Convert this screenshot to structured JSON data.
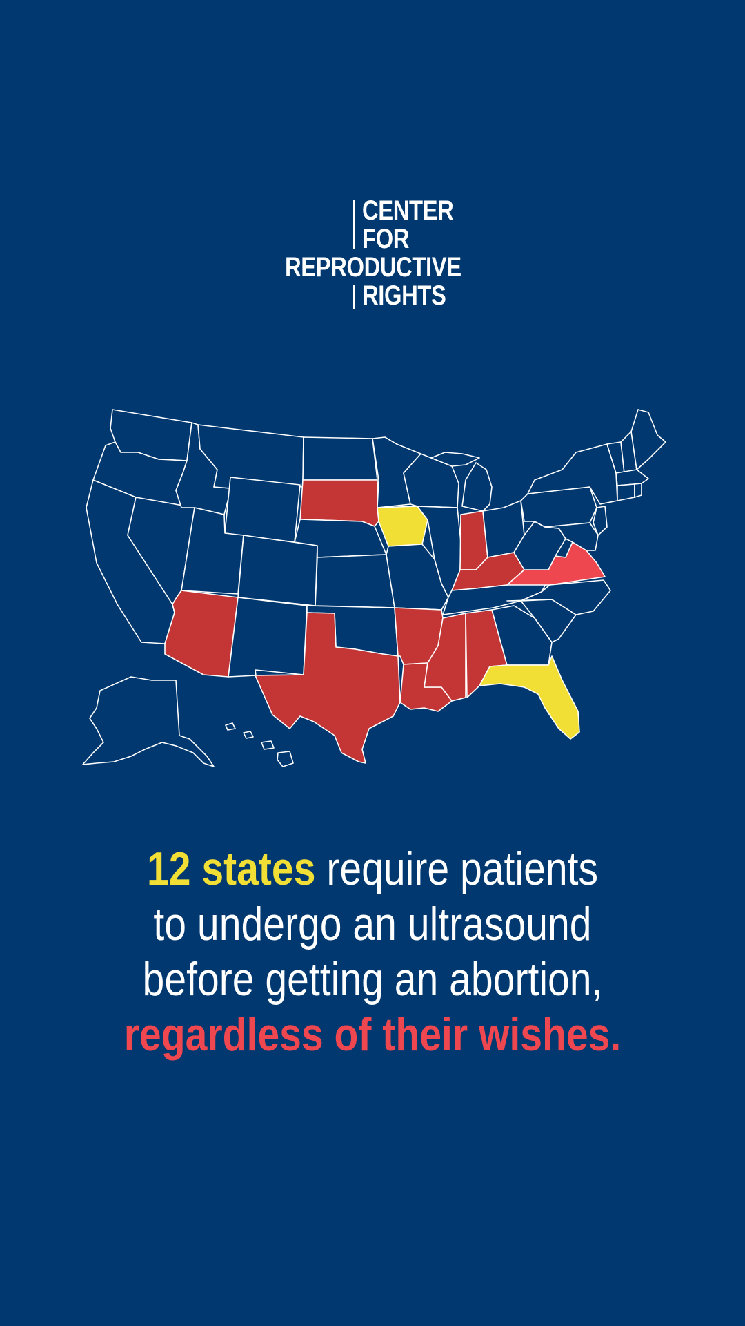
{
  "logo": {
    "line1": "CENTER",
    "line2": "FOR",
    "line3": "REPRODUCTIVE",
    "line4": "RIGHTS"
  },
  "colors": {
    "background": "#00386f",
    "none": "#00386f",
    "red": "#c43535",
    "yellow": "#f1df35",
    "pink": "#ef4750",
    "outline": "#ffffff"
  },
  "map": {
    "states": [
      {
        "name": "South Dakota",
        "category": "red"
      },
      {
        "name": "Iowa",
        "category": "yellow"
      },
      {
        "name": "Arizona",
        "category": "red"
      },
      {
        "name": "Texas",
        "category": "red"
      },
      {
        "name": "Arkansas",
        "category": "red"
      },
      {
        "name": "Louisiana",
        "category": "red"
      },
      {
        "name": "Mississippi",
        "category": "red"
      },
      {
        "name": "Alabama",
        "category": "red"
      },
      {
        "name": "Indiana",
        "category": "red"
      },
      {
        "name": "Kentucky",
        "category": "red"
      },
      {
        "name": "Virginia",
        "category": "pink"
      },
      {
        "name": "Florida",
        "category": "yellow"
      }
    ]
  },
  "headline": {
    "highlight": "12 states",
    "line1_rest": " require patients",
    "line2": "to undergo an ultrasound",
    "line3": "before getting an abortion,",
    "emphasis": "regardless of their wishes."
  }
}
